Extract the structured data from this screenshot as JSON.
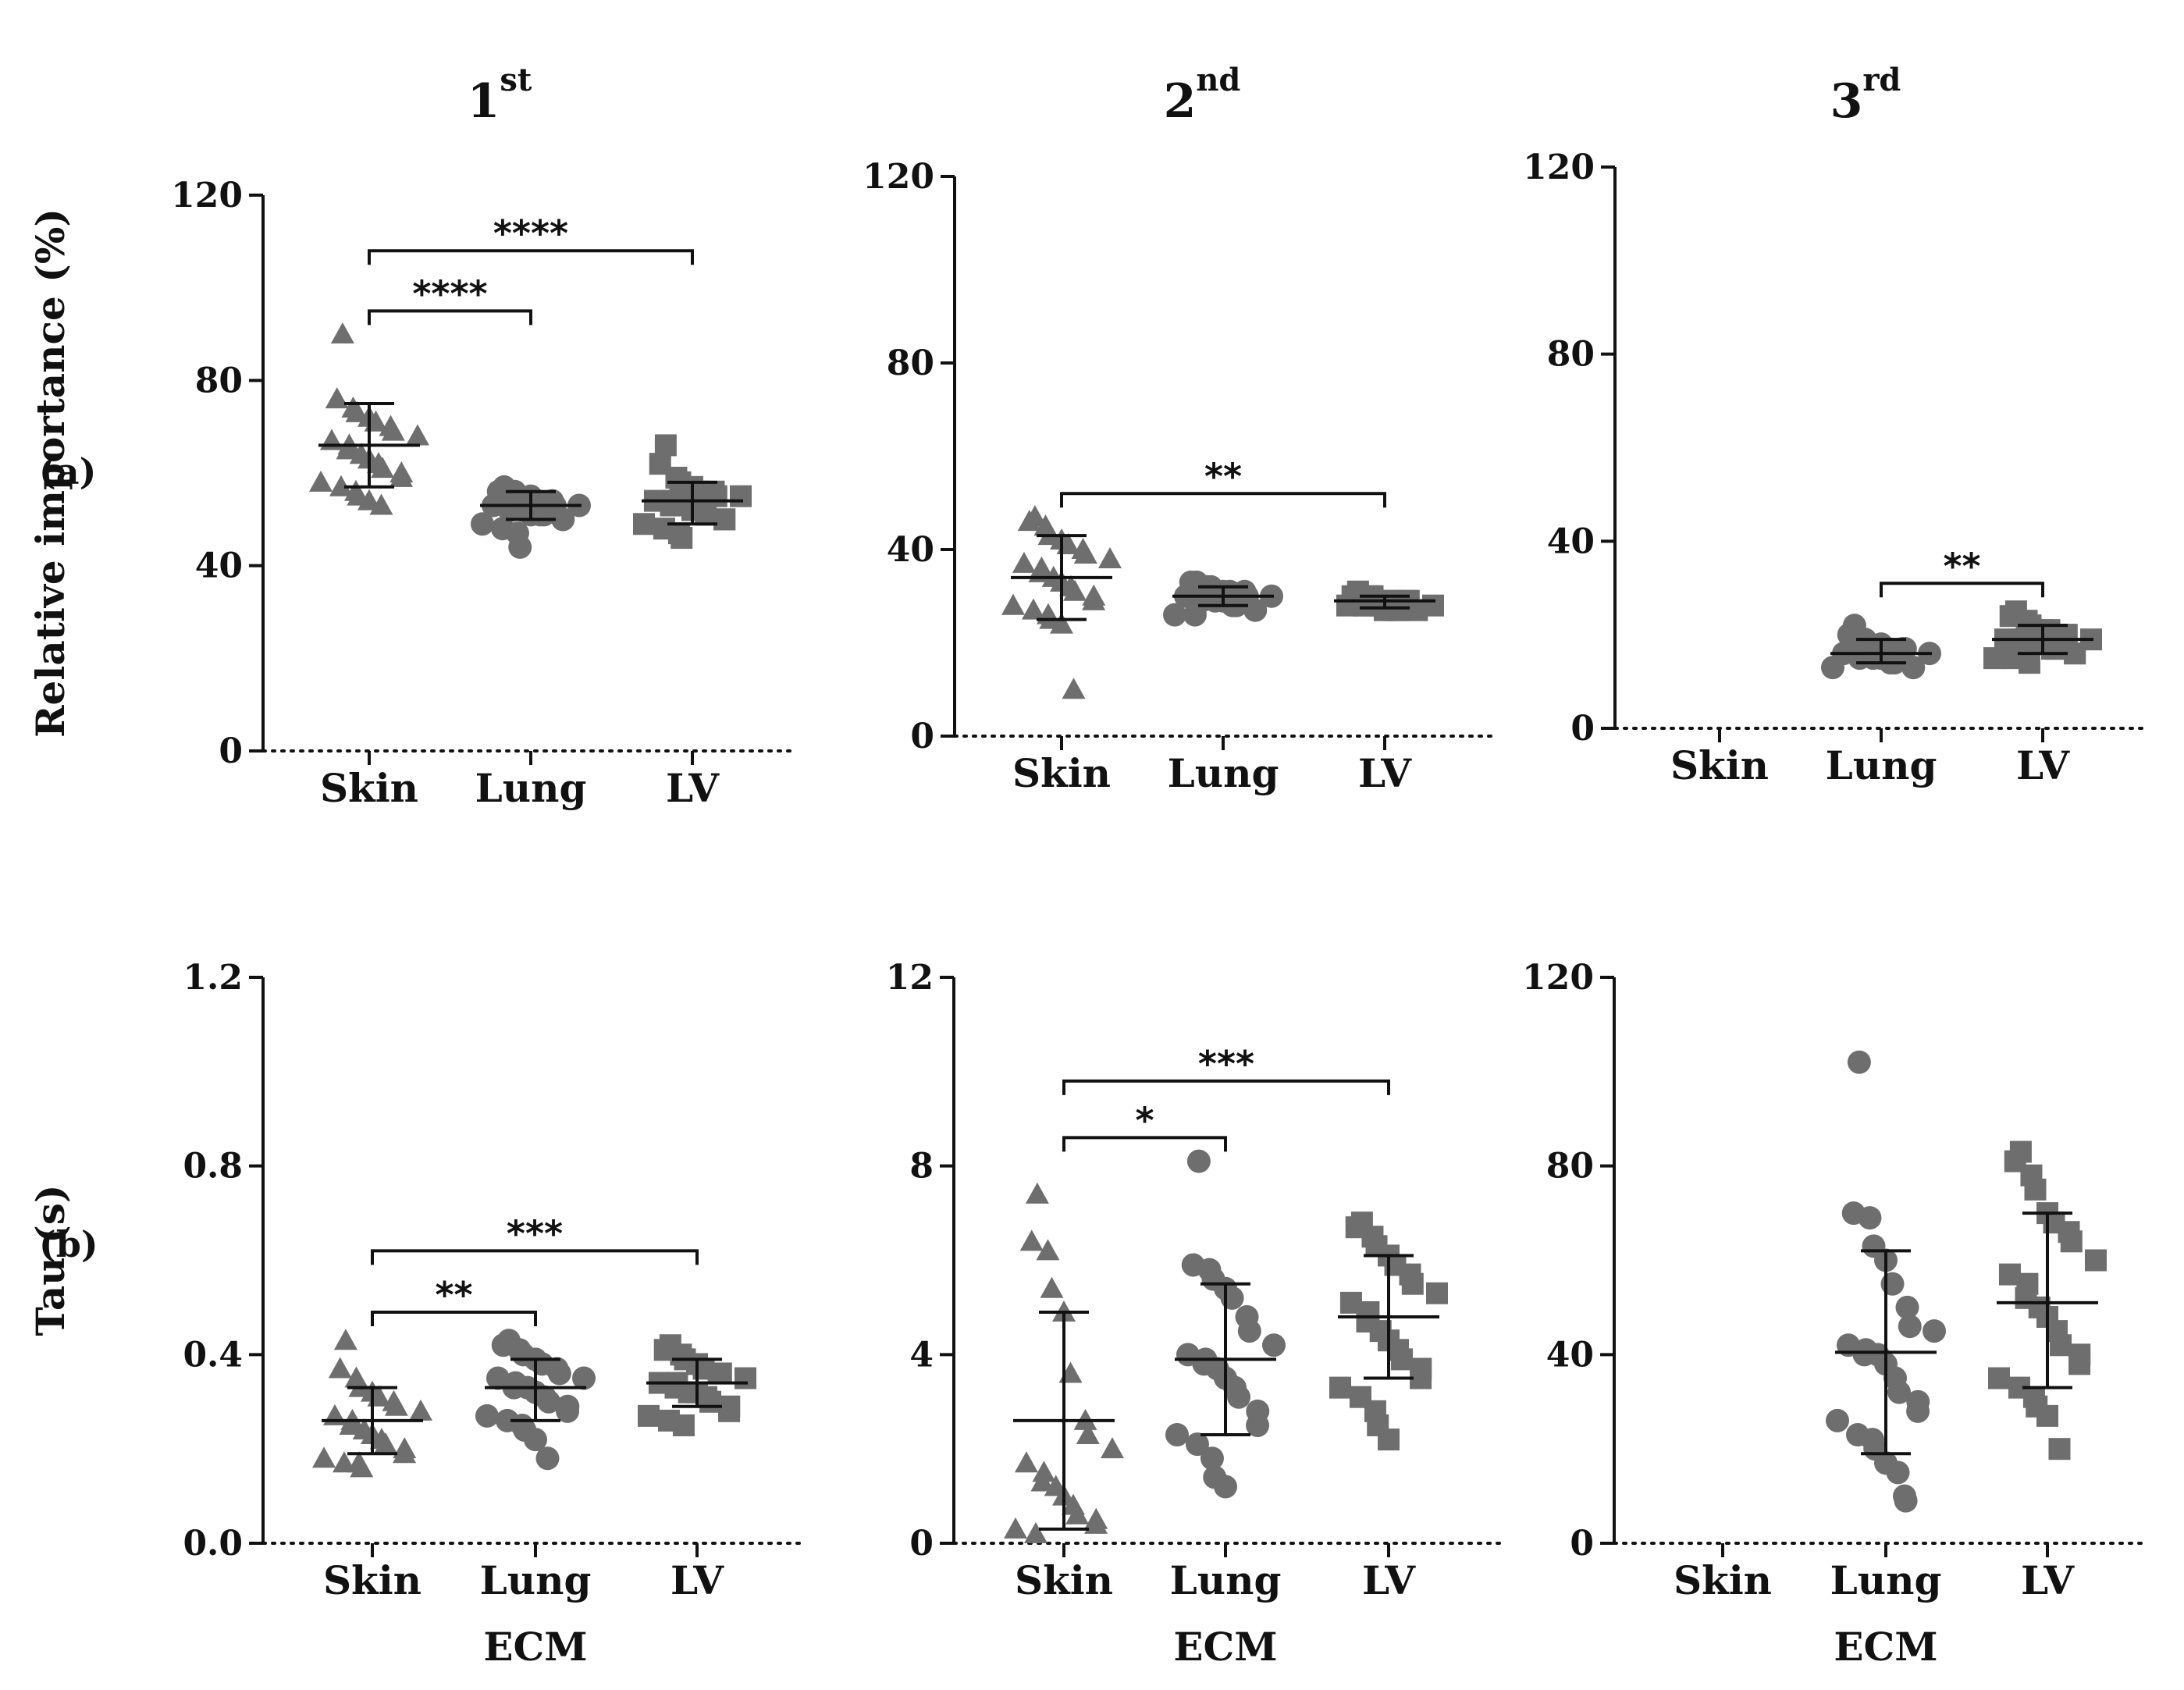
{
  "figure": {
    "column_titles": [
      {
        "main": "1",
        "sup": "st"
      },
      {
        "main": "2",
        "sup": "nd"
      },
      {
        "main": "3",
        "sup": "rd"
      }
    ],
    "row_labels": [
      "(a)",
      "(b)"
    ],
    "colors": {
      "marker": "#6e6e6e",
      "line": "#111111"
    }
  },
  "chart_data": [
    {
      "type": "scatter",
      "id": "a1",
      "row": 0,
      "col": 0,
      "title": "1st",
      "xlabel": "",
      "ylabel": "Relative importance (%)",
      "categories": [
        "Skin",
        "Lung",
        "LV"
      ],
      "yticks": [
        "0",
        "40",
        "80",
        "120"
      ],
      "ylim": [
        0,
        120
      ],
      "series": [
        {
          "name": "Skin",
          "marker": "triangle",
          "mean": 66,
          "sd_low": 57,
          "sd_high": 75,
          "values": [
            90,
            76,
            74,
            73,
            72,
            71,
            70,
            69,
            68,
            67,
            66,
            65,
            64,
            63,
            62,
            61,
            60,
            59,
            58,
            57,
            56,
            55,
            54,
            53
          ]
        },
        {
          "name": "Lung",
          "marker": "circle",
          "mean": 53,
          "sd_low": 50,
          "sd_high": 56,
          "values": [
            57,
            56,
            56,
            55,
            55,
            54,
            54,
            53,
            53,
            53,
            52,
            52,
            52,
            51,
            51,
            51,
            50,
            50,
            49,
            48,
            47,
            44
          ]
        },
        {
          "name": "LV",
          "marker": "square",
          "mean": 54,
          "sd_low": 49,
          "sd_high": 58,
          "values": [
            66,
            62,
            59,
            58,
            57,
            56,
            56,
            55,
            55,
            54,
            54,
            53,
            53,
            52,
            52,
            51,
            50,
            50,
            49,
            48,
            47,
            46
          ]
        }
      ],
      "significance": [
        {
          "from": "Skin",
          "to": "Lung",
          "label": "****",
          "y": 95
        },
        {
          "from": "Skin",
          "to": "LV",
          "label": "****",
          "y": 108
        }
      ]
    },
    {
      "type": "scatter",
      "id": "a2",
      "row": 0,
      "col": 1,
      "title": "2nd",
      "xlabel": "",
      "ylabel": "",
      "categories": [
        "Skin",
        "Lung",
        "LV"
      ],
      "yticks": [
        "0",
        "40",
        "80",
        "120"
      ],
      "ylim": [
        0,
        120
      ],
      "series": [
        {
          "name": "Skin",
          "marker": "triangle",
          "mean": 34,
          "sd_low": 25,
          "sd_high": 43,
          "values": [
            47,
            46,
            45,
            43,
            42,
            41,
            40,
            39,
            38,
            37,
            36,
            35,
            34,
            33,
            32,
            31,
            30,
            29,
            28,
            27,
            26,
            25,
            24,
            10
          ]
        },
        {
          "name": "Lung",
          "marker": "circle",
          "mean": 30,
          "sd_low": 28,
          "sd_high": 32,
          "values": [
            33,
            33,
            32,
            32,
            31,
            31,
            31,
            30,
            30,
            30,
            30,
            29,
            29,
            29,
            28,
            28,
            27,
            27,
            26,
            26
          ]
        },
        {
          "name": "LV",
          "marker": "square",
          "mean": 29,
          "sd_low": 27.5,
          "sd_high": 30,
          "values": [
            31,
            30,
            30,
            30,
            29,
            29,
            29,
            29,
            28,
            28,
            28,
            28,
            28,
            27,
            27,
            27,
            27
          ]
        }
      ],
      "significance": [
        {
          "from": "Skin",
          "to": "LV",
          "label": "**",
          "y": 52
        }
      ]
    },
    {
      "type": "scatter",
      "id": "a3",
      "row": 0,
      "col": 2,
      "title": "3rd",
      "xlabel": "",
      "ylabel": "",
      "categories": [
        "Skin",
        "Lung",
        "LV"
      ],
      "yticks": [
        "0",
        "40",
        "80",
        "120"
      ],
      "ylim": [
        0,
        120
      ],
      "series": [
        {
          "name": "Skin",
          "marker": "triangle",
          "values": []
        },
        {
          "name": "Lung",
          "marker": "circle",
          "mean": 16,
          "sd_low": 14,
          "sd_high": 19,
          "values": [
            22,
            20,
            19,
            18,
            18,
            17,
            17,
            17,
            16,
            16,
            16,
            15,
            15,
            15,
            14,
            14,
            13,
            13,
            13
          ]
        },
        {
          "name": "LV",
          "marker": "square",
          "mean": 19,
          "sd_low": 16,
          "sd_high": 22,
          "values": [
            25,
            24,
            23,
            22,
            21,
            21,
            20,
            20,
            19,
            19,
            19,
            18,
            18,
            18,
            17,
            17,
            16,
            16,
            15,
            15,
            14
          ]
        }
      ],
      "significance": [
        {
          "from": "Lung",
          "to": "LV",
          "label": "**",
          "y": 31
        }
      ]
    },
    {
      "type": "scatter",
      "id": "b1",
      "row": 1,
      "col": 0,
      "title": "",
      "xlabel": "ECM",
      "ylabel": "Tau (s)",
      "categories": [
        "Skin",
        "Lung",
        "LV"
      ],
      "yticks": [
        "0.0",
        "0.4",
        "0.8",
        "1.2"
      ],
      "ylim": [
        0,
        1.2
      ],
      "series": [
        {
          "name": "Skin",
          "marker": "triangle",
          "mean": 0.26,
          "sd_low": 0.19,
          "sd_high": 0.33,
          "values": [
            0.43,
            0.37,
            0.35,
            0.33,
            0.32,
            0.31,
            0.3,
            0.29,
            0.28,
            0.27,
            0.26,
            0.25,
            0.24,
            0.23,
            0.22,
            0.21,
            0.2,
            0.19,
            0.18,
            0.17,
            0.17,
            0.16
          ]
        },
        {
          "name": "Lung",
          "marker": "circle",
          "mean": 0.33,
          "sd_low": 0.26,
          "sd_high": 0.39,
          "values": [
            0.43,
            0.42,
            0.41,
            0.4,
            0.39,
            0.38,
            0.37,
            0.36,
            0.35,
            0.35,
            0.34,
            0.33,
            0.33,
            0.32,
            0.31,
            0.3,
            0.29,
            0.28,
            0.27,
            0.26,
            0.25,
            0.24,
            0.22,
            0.18
          ]
        },
        {
          "name": "LV",
          "marker": "square",
          "mean": 0.34,
          "sd_low": 0.29,
          "sd_high": 0.39,
          "values": [
            0.42,
            0.41,
            0.4,
            0.39,
            0.38,
            0.37,
            0.36,
            0.36,
            0.35,
            0.34,
            0.34,
            0.33,
            0.32,
            0.32,
            0.31,
            0.3,
            0.29,
            0.28,
            0.27,
            0.26,
            0.25
          ]
        }
      ],
      "significance": [
        {
          "from": "Skin",
          "to": "Lung",
          "label": "**",
          "y": 0.49
        },
        {
          "from": "Skin",
          "to": "LV",
          "label": "***",
          "y": 0.62
        }
      ]
    },
    {
      "type": "scatter",
      "id": "b2",
      "row": 1,
      "col": 1,
      "title": "",
      "xlabel": "ECM",
      "ylabel": "",
      "categories": [
        "Skin",
        "Lung",
        "LV"
      ],
      "yticks": [
        "0",
        "4",
        "8",
        "12"
      ],
      "ylim": [
        0,
        12
      ],
      "series": [
        {
          "name": "Skin",
          "marker": "triangle",
          "mean": 2.6,
          "sd_low": 0.3,
          "sd_high": 4.9,
          "values": [
            7.4,
            6.4,
            6.2,
            5.4,
            4.9,
            3.6,
            2.6,
            2.3,
            2.0,
            1.7,
            1.5,
            1.3,
            1.2,
            1.0,
            0.8,
            0.6,
            0.5,
            0.4,
            0.3,
            0.2
          ]
        },
        {
          "name": "Lung",
          "marker": "circle",
          "mean": 3.9,
          "sd_low": 2.3,
          "sd_high": 5.5,
          "values": [
            8.1,
            5.9,
            5.8,
            5.6,
            5.4,
            5.2,
            4.8,
            4.5,
            4.2,
            4.0,
            3.9,
            3.8,
            3.7,
            3.5,
            3.3,
            3.1,
            2.8,
            2.5,
            2.3,
            2.1,
            1.8,
            1.4,
            1.2
          ]
        },
        {
          "name": "LV",
          "marker": "square",
          "mean": 4.8,
          "sd_low": 3.5,
          "sd_high": 6.1,
          "values": [
            6.8,
            6.7,
            6.5,
            6.3,
            6.1,
            5.9,
            5.7,
            5.5,
            5.3,
            5.1,
            4.9,
            4.7,
            4.5,
            4.3,
            4.1,
            3.9,
            3.7,
            3.5,
            3.3,
            3.1,
            2.8,
            2.5,
            2.2
          ]
        }
      ],
      "significance": [
        {
          "from": "Skin",
          "to": "Lung",
          "label": "*",
          "y": 8.6
        },
        {
          "from": "Skin",
          "to": "LV",
          "label": "***",
          "y": 9.8
        }
      ]
    },
    {
      "type": "scatter",
      "id": "b3",
      "row": 1,
      "col": 2,
      "title": "",
      "xlabel": "ECM",
      "ylabel": "",
      "categories": [
        "Skin",
        "Lung",
        "LV"
      ],
      "yticks": [
        "0",
        "40",
        "80",
        "120"
      ],
      "ylim": [
        0,
        120
      ],
      "series": [
        {
          "name": "Skin",
          "marker": "triangle",
          "values": []
        },
        {
          "name": "Lung",
          "marker": "circle",
          "mean": 40.5,
          "sd_low": 19,
          "sd_high": 62,
          "values": [
            102,
            70,
            69,
            63,
            60,
            55,
            50,
            46,
            45,
            42,
            41,
            40,
            40,
            38,
            35,
            32,
            30,
            28,
            26,
            23,
            22,
            20,
            17,
            15,
            10,
            9
          ]
        },
        {
          "name": "LV",
          "marker": "square",
          "mean": 51,
          "sd_low": 33,
          "sd_high": 70,
          "values": [
            83,
            81,
            78,
            75,
            70,
            68,
            66,
            64,
            60,
            57,
            55,
            52,
            50,
            48,
            45,
            42,
            40,
            38,
            35,
            33,
            31,
            29,
            27,
            20
          ]
        }
      ],
      "significance": []
    }
  ]
}
